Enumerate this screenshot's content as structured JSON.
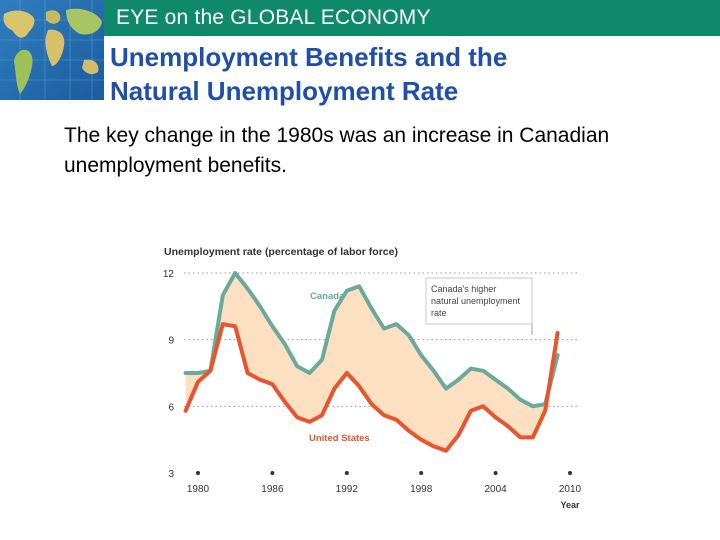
{
  "header": {
    "section_label": "EYE on the GLOBAL ECONOMY",
    "globe_icon": "world-map-icon"
  },
  "slide": {
    "title_line1": "Unemployment Benefits and the",
    "title_line2": "Natural Unemployment Rate",
    "body": "The key change in the 1980s was an increase in Canadian unemployment benefits."
  },
  "colors": {
    "header_bar": "#0e8a6a",
    "title": "#1f4fa8",
    "canada_line": "#6aaa9c",
    "us_line": "#e8552c",
    "gap_fill": "#fde0c2"
  },
  "chart_data": {
    "type": "line",
    "title": "Unemployment rate (percentage of labor force)",
    "xlabel": "Year",
    "ylabel": "",
    "xlim": [
      1980,
      2010
    ],
    "ylim": [
      3,
      12
    ],
    "x_ticks": [
      1980,
      1986,
      1992,
      1998,
      2004,
      2010
    ],
    "y_ticks": [
      3,
      6,
      9,
      12
    ],
    "grid": "horizontal-dotted",
    "x": [
      1979,
      1980,
      1981,
      1982,
      1983,
      1984,
      1985,
      1986,
      1987,
      1988,
      1989,
      1990,
      1991,
      1992,
      1993,
      1994,
      1995,
      1996,
      1997,
      1998,
      1999,
      2000,
      2001,
      2002,
      2003,
      2004,
      2005,
      2006,
      2007,
      2008,
      2009
    ],
    "series": [
      {
        "name": "Canada",
        "values": [
          7.5,
          7.5,
          7.6,
          11.0,
          12.0,
          11.3,
          10.5,
          9.6,
          8.8,
          7.8,
          7.5,
          8.1,
          10.3,
          11.2,
          11.4,
          10.4,
          9.5,
          9.7,
          9.2,
          8.3,
          7.6,
          6.8,
          7.2,
          7.7,
          7.6,
          7.2,
          6.8,
          6.3,
          6.0,
          6.1,
          8.3
        ]
      },
      {
        "name": "United States",
        "values": [
          5.8,
          7.1,
          7.6,
          9.7,
          9.6,
          7.5,
          7.2,
          7.0,
          6.2,
          5.5,
          5.3,
          5.6,
          6.8,
          7.5,
          6.9,
          6.1,
          5.6,
          5.4,
          4.9,
          4.5,
          4.2,
          4.0,
          4.7,
          5.8,
          6.0,
          5.5,
          5.1,
          4.6,
          4.6,
          5.8,
          9.3
        ]
      }
    ],
    "series_labels": {
      "canada": "Canada",
      "us": "United States"
    },
    "annotation": {
      "lines": [
        "Canada's higher",
        "natural unemployment",
        "rate"
      ]
    }
  }
}
